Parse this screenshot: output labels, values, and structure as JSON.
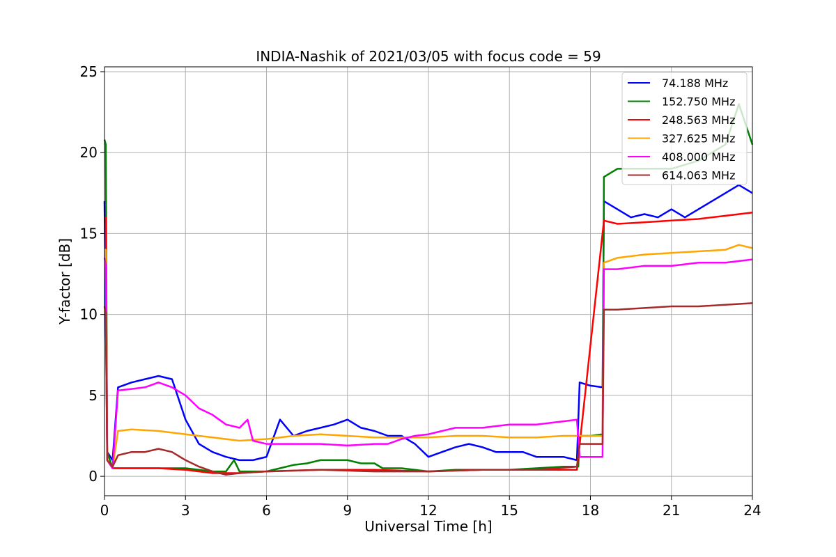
{
  "chart_data": {
    "type": "line",
    "title": "INDIA-Nashik of 2021/03/05 with focus code = 59",
    "xlabel": "Universal Time [h]",
    "ylabel": "Y-factor [dB]",
    "xlim": [
      0,
      24
    ],
    "ylim": [
      -1.2,
      25.3
    ],
    "xticks": [
      "0",
      "3",
      "6",
      "9",
      "12",
      "15",
      "18",
      "21",
      "24"
    ],
    "yticks": [
      "0",
      "5",
      "10",
      "15",
      "20",
      "25"
    ],
    "grid": true,
    "legend_position": "top-right",
    "series": [
      {
        "name": "  74.188 MHz",
        "color": "#0000ff",
        "x": [
          0,
          0.1,
          0.3,
          0.5,
          1.0,
          1.5,
          2.0,
          2.5,
          3.0,
          3.5,
          4.0,
          4.5,
          5.0,
          5.5,
          6.0,
          6.5,
          7.0,
          7.5,
          8.0,
          8.5,
          9.0,
          9.5,
          10.0,
          10.5,
          11.0,
          11.5,
          12.0,
          12.5,
          13.0,
          13.5,
          14.0,
          14.5,
          15.0,
          15.5,
          16.0,
          16.5,
          17.0,
          17.5,
          17.6,
          18.0,
          18.45,
          18.5,
          19.0,
          19.5,
          20.0,
          20.5,
          21.0,
          21.5,
          22.0,
          22.5,
          23.0,
          23.5,
          24.0
        ],
        "y": [
          17,
          1.5,
          1.0,
          5.5,
          5.8,
          6.0,
          6.2,
          6.0,
          3.5,
          2.0,
          1.5,
          1.2,
          1.0,
          1.0,
          1.2,
          3.5,
          2.5,
          2.8,
          3.0,
          3.2,
          3.5,
          3.0,
          2.8,
          2.5,
          2.5,
          2.0,
          1.2,
          1.5,
          1.8,
          2.0,
          1.8,
          1.5,
          1.5,
          1.5,
          1.2,
          1.2,
          1.2,
          1.0,
          5.8,
          5.6,
          5.5,
          17.0,
          16.5,
          16.0,
          16.2,
          16.0,
          16.5,
          16.0,
          16.5,
          17.0,
          17.5,
          18.0,
          17.5
        ]
      },
      {
        "name": "152.750 MHz",
        "color": "#008000",
        "x": [
          0,
          0.05,
          0.1,
          0.3,
          0.5,
          1.0,
          2.0,
          3.0,
          4.0,
          4.5,
          4.8,
          5.0,
          6.0,
          6.5,
          7.0,
          7.5,
          8.0,
          8.5,
          9.0,
          9.5,
          10.0,
          10.3,
          11.0,
          12.0,
          13.0,
          14.0,
          15.0,
          16.0,
          17.0,
          17.55,
          17.6,
          18.0,
          18.45,
          18.5,
          19.0,
          20.0,
          21.0,
          22.0,
          23.0,
          23.5,
          24.0
        ],
        "y": [
          20.8,
          20.5,
          1.5,
          0.5,
          0.5,
          0.5,
          0.5,
          0.5,
          0.3,
          0.3,
          1.0,
          0.3,
          0.3,
          0.5,
          0.7,
          0.8,
          1.0,
          1.0,
          1.0,
          0.8,
          0.8,
          0.5,
          0.5,
          0.3,
          0.4,
          0.4,
          0.4,
          0.5,
          0.6,
          0.6,
          2.5,
          2.5,
          2.6,
          18.5,
          19.0,
          19.0,
          19.0,
          19.5,
          20.5,
          23.0,
          20.5
        ]
      },
      {
        "name": "248.563 MHz",
        "color": "#ff0000",
        "x": [
          0,
          0.05,
          0.1,
          0.3,
          0.5,
          1.0,
          2.0,
          3.0,
          4.0,
          5.0,
          6.0,
          8.0,
          10.0,
          12.0,
          14.0,
          16.0,
          17.5,
          18.5,
          19.0,
          20.0,
          21.0,
          22.0,
          23.0,
          24.0
        ],
        "y": [
          16,
          16,
          1.0,
          0.5,
          0.5,
          0.5,
          0.5,
          0.4,
          0.2,
          0.2,
          0.3,
          0.4,
          0.4,
          0.3,
          0.4,
          0.4,
          0.4,
          15.8,
          15.6,
          15.7,
          15.8,
          15.9,
          16.1,
          16.3
        ]
      },
      {
        "name": "327.625 MHz",
        "color": "#ffa500",
        "x": [
          0,
          0.05,
          0.1,
          0.3,
          0.5,
          1.0,
          2.0,
          3.0,
          4.0,
          5.0,
          6.0,
          7.0,
          8.0,
          9.0,
          10.0,
          11.0,
          12.0,
          13.0,
          14.0,
          15.0,
          16.0,
          17.0,
          17.5,
          18.0,
          18.45,
          18.5,
          19.0,
          20.0,
          21.0,
          22.0,
          23.0,
          23.5,
          24.0
        ],
        "y": [
          14,
          14,
          1.0,
          0.5,
          2.8,
          2.9,
          2.8,
          2.6,
          2.4,
          2.2,
          2.3,
          2.5,
          2.6,
          2.5,
          2.4,
          2.4,
          2.4,
          2.5,
          2.5,
          2.4,
          2.4,
          2.5,
          2.5,
          2.5,
          2.5,
          13.2,
          13.5,
          13.7,
          13.8,
          13.9,
          14.0,
          14.3,
          14.1
        ]
      },
      {
        "name": "408.000 MHz",
        "color": "#ff00ff",
        "x": [
          0,
          0.05,
          0.1,
          0.3,
          0.5,
          1.0,
          1.5,
          2.0,
          2.5,
          3.0,
          3.5,
          4.0,
          4.5,
          5.0,
          5.3,
          5.5,
          6.0,
          7.0,
          8.0,
          9.0,
          10.0,
          10.5,
          11.0,
          11.5,
          12.0,
          12.5,
          13.0,
          14.0,
          15.0,
          16.0,
          17.0,
          17.5,
          17.6,
          18.0,
          18.45,
          18.5,
          19.0,
          20.0,
          21.0,
          22.0,
          23.0,
          24.0
        ],
        "y": [
          13.5,
          13,
          1.0,
          0.5,
          5.3,
          5.4,
          5.5,
          5.8,
          5.5,
          5.0,
          4.2,
          3.8,
          3.2,
          3.0,
          3.5,
          2.2,
          2.0,
          2.0,
          2.0,
          1.9,
          2.0,
          2.0,
          2.3,
          2.5,
          2.6,
          2.8,
          3.0,
          3.0,
          3.2,
          3.2,
          3.4,
          3.5,
          1.2,
          1.2,
          1.2,
          12.8,
          12.8,
          13.0,
          13.0,
          13.2,
          13.2,
          13.4
        ]
      },
      {
        "name": "614.063 MHz",
        "color": "#a52a2a",
        "x": [
          0,
          0.05,
          0.1,
          0.3,
          0.5,
          1.0,
          1.5,
          2.0,
          2.5,
          3.0,
          3.5,
          4.0,
          4.5,
          5.0,
          6.0,
          8.0,
          10.0,
          12.0,
          14.0,
          16.0,
          17.5,
          17.6,
          18.0,
          18.45,
          18.5,
          19.0,
          20.0,
          21.0,
          22.0,
          23.0,
          24.0
        ],
        "y": [
          10.5,
          10,
          1.0,
          0.6,
          1.3,
          1.5,
          1.5,
          1.7,
          1.5,
          1.0,
          0.6,
          0.3,
          0.1,
          0.2,
          0.3,
          0.4,
          0.3,
          0.3,
          0.4,
          0.4,
          0.6,
          2.0,
          2.0,
          2.0,
          10.3,
          10.3,
          10.4,
          10.5,
          10.5,
          10.6,
          10.7
        ]
      }
    ]
  }
}
